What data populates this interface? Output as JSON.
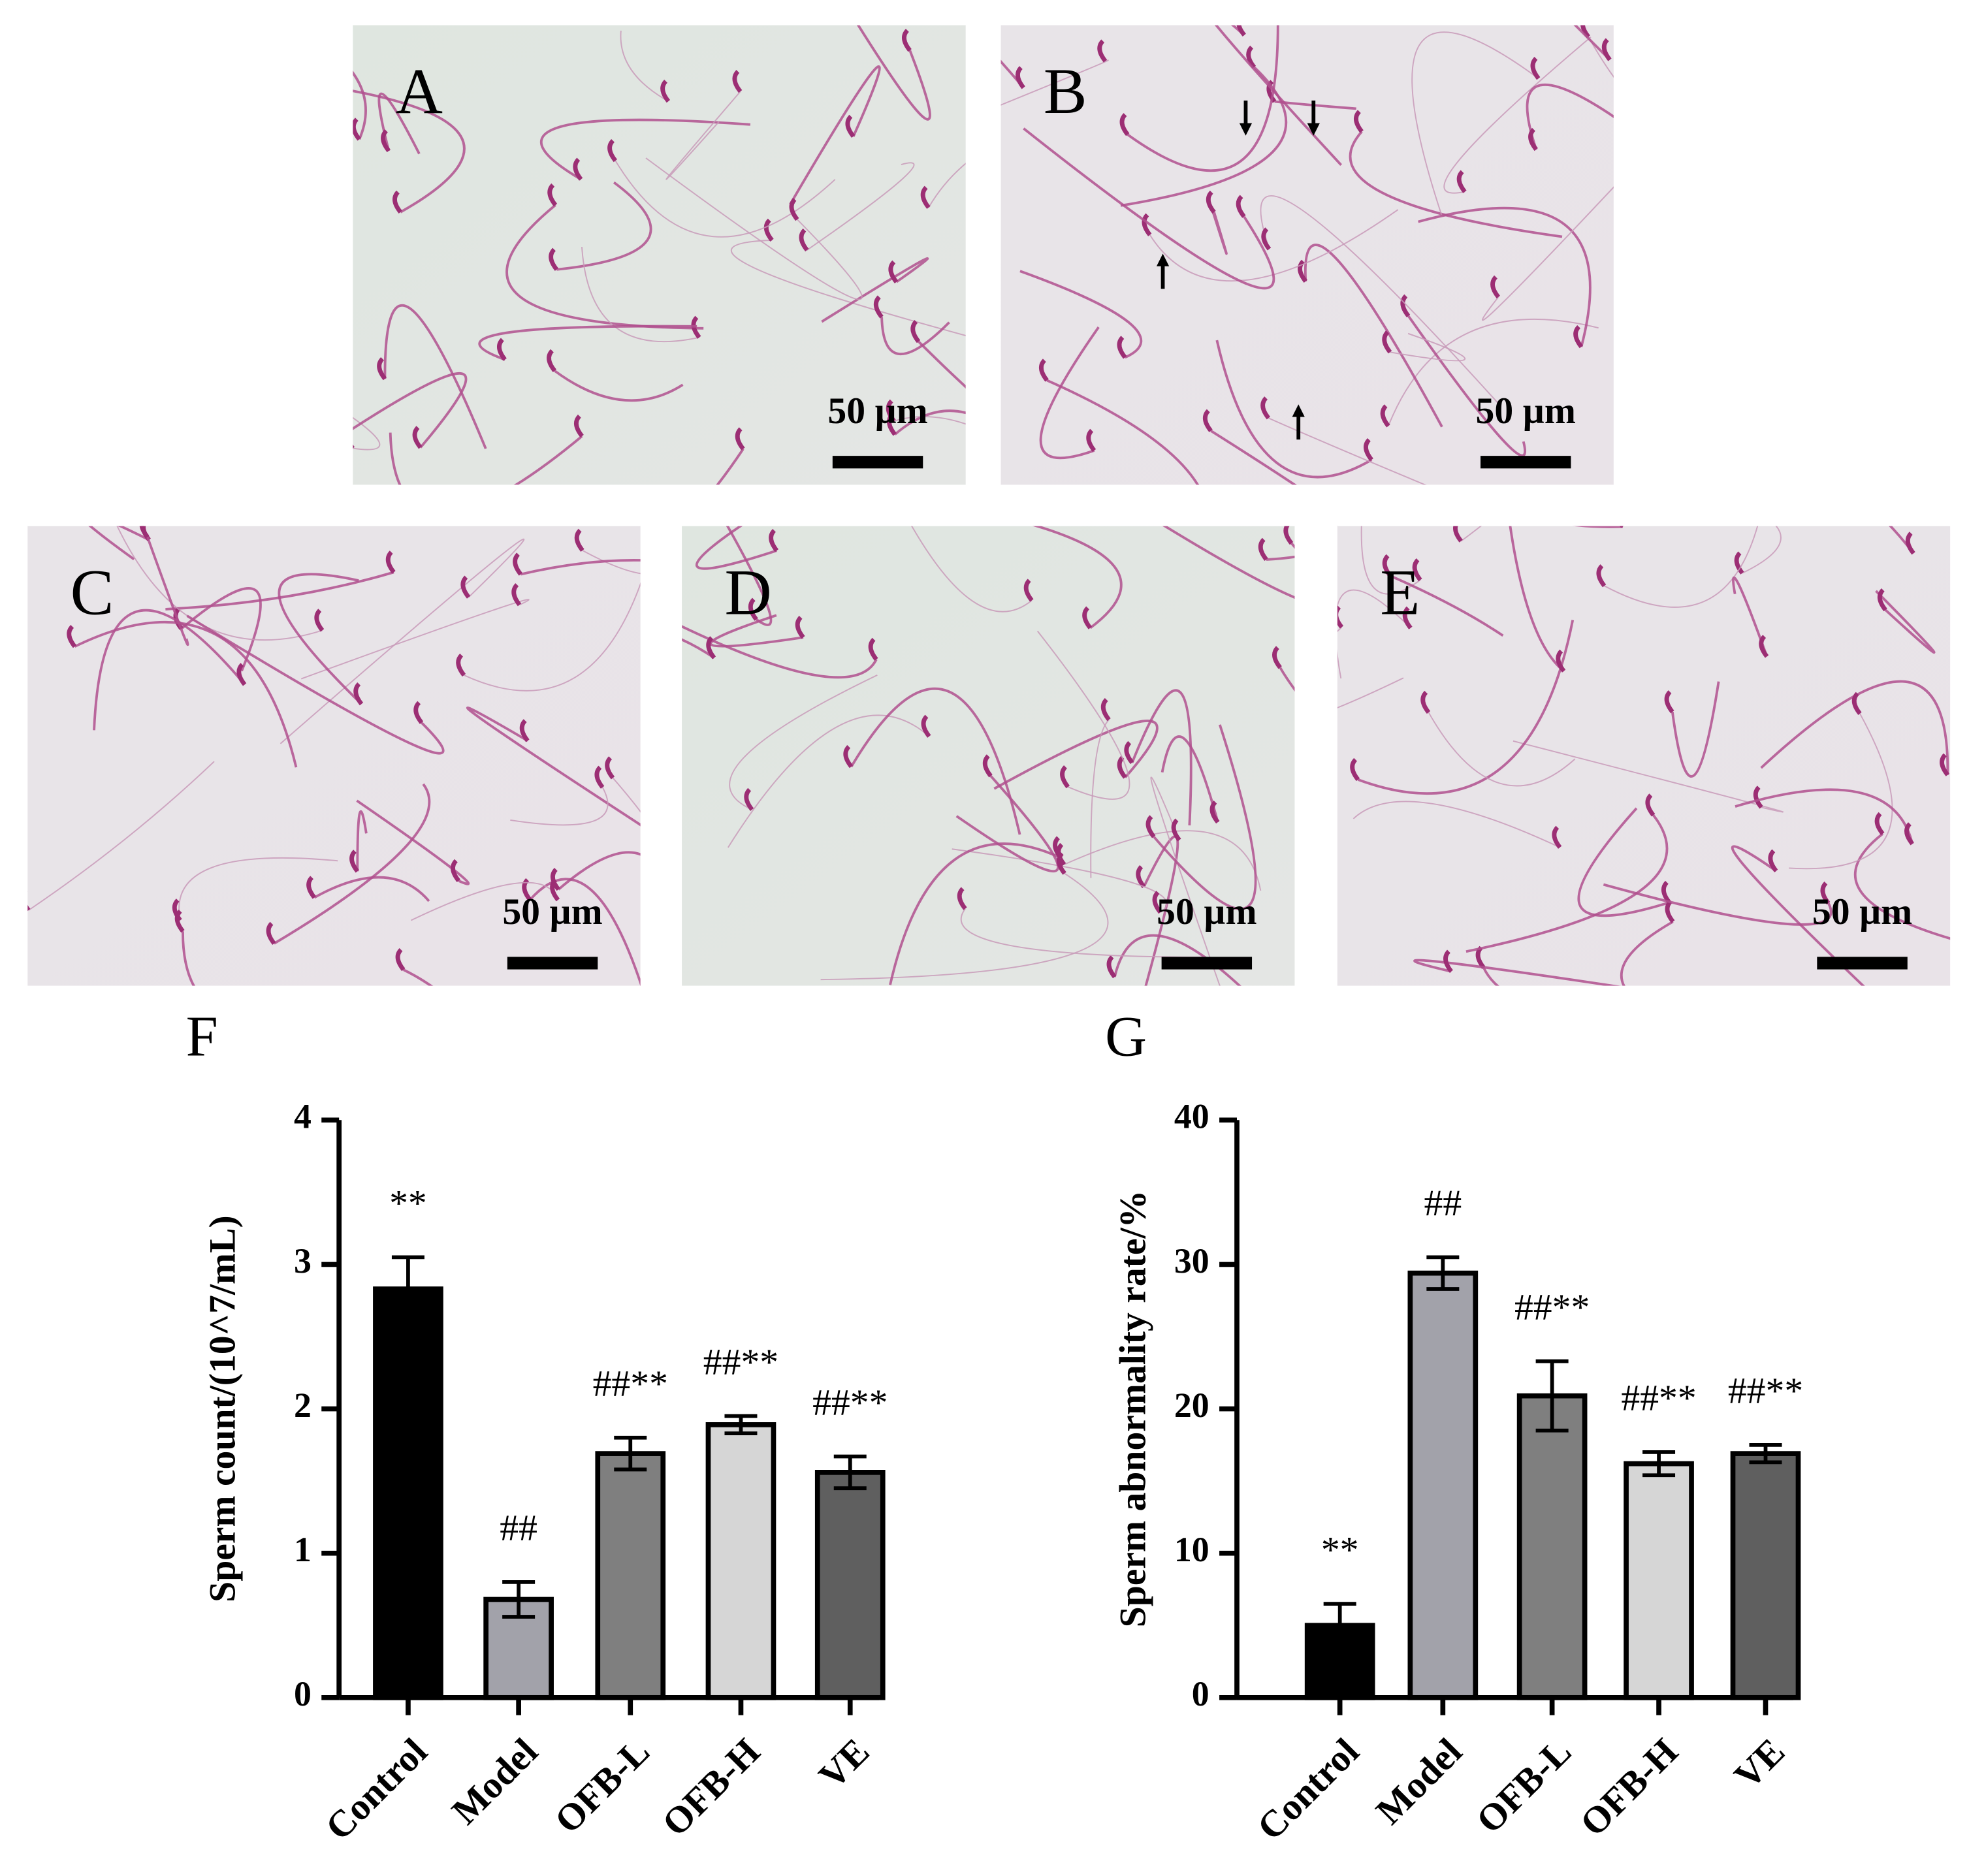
{
  "panels": [
    {
      "label": "A",
      "scale_bar": "50 µm"
    },
    {
      "label": "B",
      "scale_bar": "50 µm"
    },
    {
      "label": "C",
      "scale_bar": "50 µm"
    },
    {
      "label": "D",
      "scale_bar": "50 µm"
    },
    {
      "label": "E",
      "scale_bar": "50 µm"
    }
  ],
  "chart_data": [
    {
      "type": "bar",
      "title": "F",
      "y_label": "Sperm count/(10^7/mL)",
      "categories": [
        "Control",
        "Model",
        "OFB-L",
        "OFB-H",
        "VE"
      ],
      "values": [
        2.83,
        0.68,
        1.69,
        1.89,
        1.56
      ],
      "errors": [
        0.22,
        0.12,
        0.11,
        0.06,
        0.11
      ],
      "annotations": [
        "**",
        "##",
        "##**",
        "##**",
        "##**"
      ],
      "colors": [
        "#000000",
        "#a2a2aa",
        "#7f7f7f",
        "#d6d6d6",
        "#5f5f5f"
      ],
      "ylim": [
        0,
        4
      ],
      "yticks": [
        0,
        1,
        2,
        3,
        4
      ]
    },
    {
      "type": "bar",
      "title": "G",
      "y_label": "Sperm abnormality rate/%",
      "categories": [
        "Control",
        "Model",
        "OFB-L",
        "OFB-H",
        "VE"
      ],
      "values": [
        5.0,
        29.4,
        20.9,
        16.2,
        16.9
      ],
      "errors": [
        1.5,
        1.1,
        2.4,
        0.8,
        0.6
      ],
      "annotations": [
        "**",
        "##",
        "##**",
        "##**",
        "##**"
      ],
      "colors": [
        "#000000",
        "#a2a2aa",
        "#7f7f7f",
        "#d6d6d6",
        "#5f5f5f"
      ],
      "ylim": [
        0,
        40
      ],
      "yticks": [
        0,
        10,
        20,
        30,
        40
      ]
    }
  ]
}
